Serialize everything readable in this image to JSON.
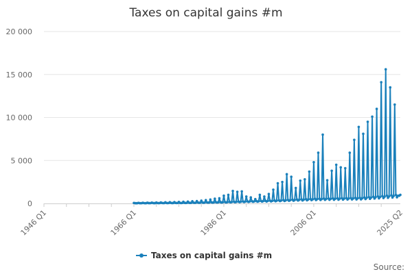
{
  "chart_data": {
    "type": "line",
    "title": "Taxes on capital gains #m",
    "xlabel": "",
    "ylabel": "",
    "x_tick_labels": [
      "1946 Q1",
      "1966 Q1",
      "1986 Q1",
      "2006 Q1",
      "2025 Q2"
    ],
    "x_tick_years": [
      1946,
      1966,
      1986,
      2006,
      2025.25
    ],
    "xlim": [
      1946,
      2025.25
    ],
    "ylim": [
      0,
      20000
    ],
    "y_ticks": [
      0,
      5000,
      10000,
      15000,
      20000
    ],
    "y_tick_labels": [
      "0",
      "5 000",
      "10 000",
      "15 000",
      "20 000"
    ],
    "grid": true,
    "legend_position": "bottom-center",
    "series": [
      {
        "name": "Taxes on capital gains #m",
        "color": "#1a80bb",
        "start": "1966 Q1",
        "frequency": "quarterly",
        "annual_peaks": [
          {
            "year": 1966,
            "peak": 60
          },
          {
            "year": 1967,
            "peak": 70
          },
          {
            "year": 1968,
            "peak": 80
          },
          {
            "year": 1969,
            "peak": 90
          },
          {
            "year": 1970,
            "peak": 100
          },
          {
            "year": 1971,
            "peak": 110
          },
          {
            "year": 1972,
            "peak": 120
          },
          {
            "year": 1973,
            "peak": 140
          },
          {
            "year": 1974,
            "peak": 150
          },
          {
            "year": 1975,
            "peak": 160
          },
          {
            "year": 1976,
            "peak": 180
          },
          {
            "year": 1977,
            "peak": 200
          },
          {
            "year": 1978,
            "peak": 220
          },
          {
            "year": 1979,
            "peak": 250
          },
          {
            "year": 1980,
            "peak": 280
          },
          {
            "year": 1981,
            "peak": 320
          },
          {
            "year": 1982,
            "peak": 380
          },
          {
            "year": 1983,
            "peak": 450
          },
          {
            "year": 1984,
            "peak": 550
          },
          {
            "year": 1985,
            "peak": 600
          },
          {
            "year": 1986,
            "peak": 900
          },
          {
            "year": 1987,
            "peak": 1000
          },
          {
            "year": 1988,
            "peak": 1450
          },
          {
            "year": 1989,
            "peak": 1350
          },
          {
            "year": 1990,
            "peak": 1400
          },
          {
            "year": 1991,
            "peak": 800
          },
          {
            "year": 1992,
            "peak": 700
          },
          {
            "year": 1993,
            "peak": 500
          },
          {
            "year": 1994,
            "peak": 1000
          },
          {
            "year": 1995,
            "peak": 800
          },
          {
            "year": 1996,
            "peak": 1100
          },
          {
            "year": 1997,
            "peak": 1600
          },
          {
            "year": 1998,
            "peak": 2350
          },
          {
            "year": 1999,
            "peak": 2500
          },
          {
            "year": 2000,
            "peak": 3400
          },
          {
            "year": 2001,
            "peak": 3100
          },
          {
            "year": 2002,
            "peak": 1800
          },
          {
            "year": 2003,
            "peak": 2650
          },
          {
            "year": 2004,
            "peak": 2800
          },
          {
            "year": 2005,
            "peak": 3700
          },
          {
            "year": 2006,
            "peak": 4800
          },
          {
            "year": 2007,
            "peak": 5900
          },
          {
            "year": 2008,
            "peak": 8000
          },
          {
            "year": 2009,
            "peak": 2700
          },
          {
            "year": 2010,
            "peak": 3800
          },
          {
            "year": 2011,
            "peak": 4500
          },
          {
            "year": 2012,
            "peak": 4200
          },
          {
            "year": 2013,
            "peak": 4100
          },
          {
            "year": 2014,
            "peak": 5900
          },
          {
            "year": 2015,
            "peak": 7400
          },
          {
            "year": 2016,
            "peak": 8900
          },
          {
            "year": 2017,
            "peak": 8100
          },
          {
            "year": 2018,
            "peak": 9500
          },
          {
            "year": 2019,
            "peak": 10100
          },
          {
            "year": 2020,
            "peak": 11000
          },
          {
            "year": 2021,
            "peak": 14100
          },
          {
            "year": 2022,
            "peak": 15600
          },
          {
            "year": 2023,
            "peak": 13500
          },
          {
            "year": 2024,
            "peak": 11500
          }
        ],
        "annual_base": [
          {
            "year": 1966,
            "base": 30
          },
          {
            "year": 1976,
            "base": 60
          },
          {
            "year": 1986,
            "base": 150
          },
          {
            "year": 1996,
            "base": 300
          },
          {
            "year": 2006,
            "base": 500
          },
          {
            "year": 2016,
            "base": 600
          },
          {
            "year": 2024,
            "base": 900
          }
        ],
        "last": {
          "period": "2025 Q2",
          "value": 1000
        }
      }
    ]
  },
  "source_label": "Source:"
}
